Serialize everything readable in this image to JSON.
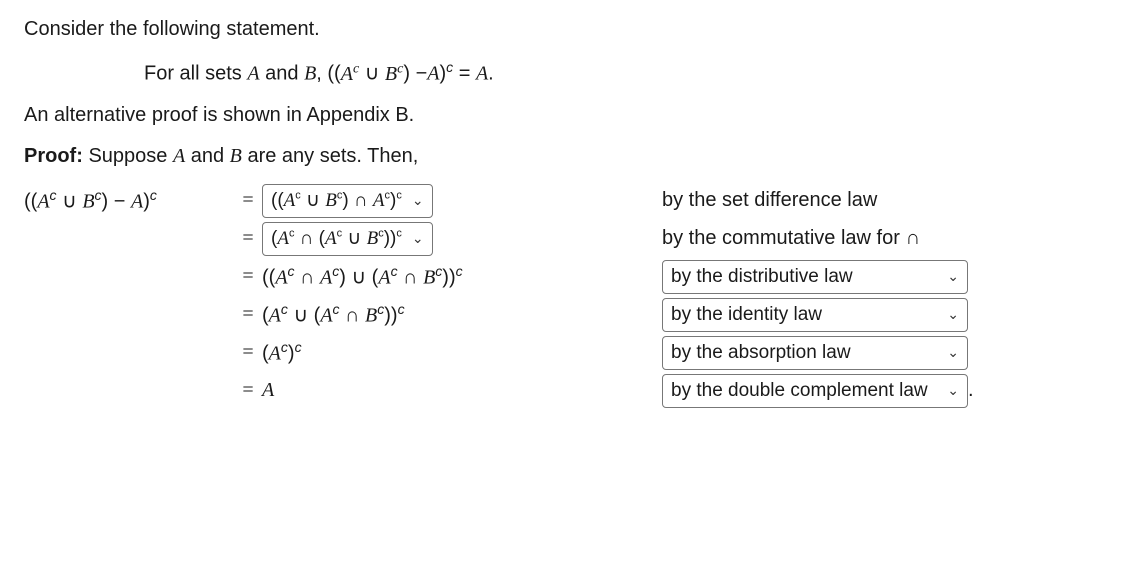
{
  "intro": "Consider the following statement.",
  "statement_prefix": "For all sets ",
  "statement_A": "A",
  "statement_and": " and ",
  "statement_B": "B",
  "statement_comma": ", ((",
  "statement_Ac": "A",
  "statement_cup": " ∪ ",
  "statement_Bc": "B",
  "statement_minus": ") −",
  "statement_A2": "A",
  "statement_close": ")",
  "statement_eq": " = ",
  "statement_Arhs": "A",
  "statement_period": ".",
  "appendix": "An alternative proof is shown in Appendix B.",
  "proof_label": "Proof:",
  "proof_suppose": " Suppose ",
  "proof_A": "A",
  "proof_and": " and ",
  "proof_B": "B",
  "proof_rest": " are any sets. Then,",
  "lhs_open": "((",
  "lhs_A": "A",
  "lhs_cup": " ∪ ",
  "lhs_B": "B",
  "lhs_mid": ") − ",
  "lhs_A2": "A",
  "lhs_close": ")",
  "eq_sign": "=",
  "rows": [
    {
      "rhs_select": "((Aᶜ ∪ Bᶜ) ∩ Aᶜ)ᶜ",
      "is_select_rhs": true,
      "reason_text": "by the set difference law",
      "is_select_reason": false
    },
    {
      "rhs_select": "(Aᶜ ∩ (Aᶜ ∪ Bᶜ))ᶜ",
      "is_select_rhs": true,
      "reason_prefix": "by the commutative law for ",
      "reason_symbol": "∩",
      "is_select_reason": false
    },
    {
      "rhs_html_key": "row3",
      "is_select_rhs": false,
      "reason_text": "by the distributive law",
      "is_select_reason": true
    },
    {
      "rhs_html_key": "row4",
      "is_select_rhs": false,
      "reason_text": "by the identity law",
      "is_select_reason": true
    },
    {
      "rhs_html_key": "row5",
      "is_select_rhs": false,
      "reason_text": "by the absorption law",
      "is_select_reason": true
    },
    {
      "rhs_html_key": "row6",
      "is_select_rhs": false,
      "reason_text": "by the double complement law",
      "is_select_reason": true,
      "trailing_period": "."
    }
  ],
  "chevron": "⌄"
}
